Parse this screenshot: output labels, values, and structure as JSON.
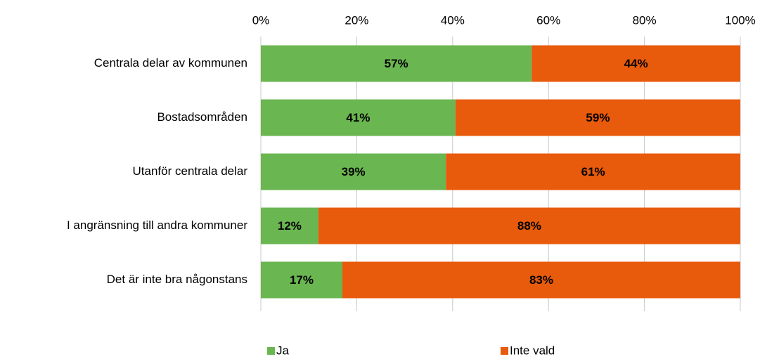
{
  "chart_data": {
    "type": "stacked-bar-horizontal",
    "categories": [
      "Centrala delar av kommunen",
      "Bostadsområden",
      "Utanför centrala delar",
      "I angränsning till andra kommuner",
      "Det är inte bra någonstans"
    ],
    "series": [
      {
        "name": "Ja",
        "color": "#6ab650",
        "values": [
          56.5,
          40.6,
          38.6,
          12,
          17
        ],
        "value_labels": [
          "57%",
          "41%",
          "39%",
          "12%",
          "17%"
        ]
      },
      {
        "name": "Inte vald",
        "color": "#e85a0c",
        "values": [
          43.5,
          59.4,
          61.4,
          88,
          83
        ],
        "value_labels": [
          "44%",
          "59%",
          "61%",
          "88%",
          "83%"
        ]
      }
    ],
    "xlim": [
      0,
      100
    ],
    "xticks": [
      {
        "value": 0,
        "label": "0%"
      },
      {
        "value": 20,
        "label": "20%"
      },
      {
        "value": 40,
        "label": "40%"
      },
      {
        "value": 60,
        "label": "60%"
      },
      {
        "value": 80,
        "label": "80%"
      },
      {
        "value": 100,
        "label": "100%"
      }
    ],
    "grid": true,
    "legend": "bottom"
  }
}
